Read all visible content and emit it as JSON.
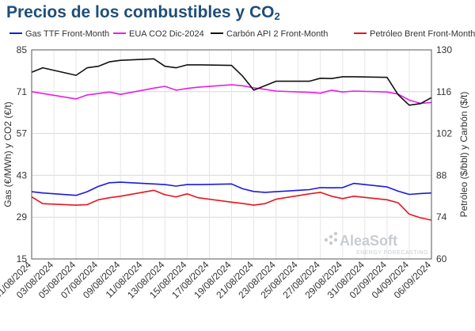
{
  "title_main": "Precios de los combustibles y CO",
  "title_sub": "2",
  "watermark": {
    "name": "AleaSoft",
    "tagline": "ENERGY FORECASTING"
  },
  "chart_data": {
    "type": "line",
    "x": [
      "01/08/2024",
      "02/08/2024",
      "05/08/2024",
      "06/08/2024",
      "07/08/2024",
      "08/08/2024",
      "09/08/2024",
      "12/08/2024",
      "13/08/2024",
      "14/08/2024",
      "15/08/2024",
      "16/08/2024",
      "19/08/2024",
      "20/08/2024",
      "21/08/2024",
      "22/08/2024",
      "23/08/2024",
      "26/08/2024",
      "27/08/2024",
      "28/08/2024",
      "29/08/2024",
      "30/08/2024",
      "02/09/2024",
      "03/09/2024",
      "04/09/2024",
      "05/09/2024",
      "06/09/2024"
    ],
    "xticks": [
      "01/08/2024",
      "03/08/2024",
      "05/08/2024",
      "07/08/2024",
      "09/08/2024",
      "11/08/2024",
      "13/08/2024",
      "15/08/2024",
      "17/08/2024",
      "19/08/2024",
      "21/08/2024",
      "23/08/2024",
      "25/08/2024",
      "27/08/2024",
      "29/08/2024",
      "31/08/2024",
      "02/09/2024",
      "04/09/2024",
      "06/09/2024"
    ],
    "xstart": "01/08/2024",
    "xend": "06/09/2024",
    "series": [
      {
        "name": "Gas TTF Front-Month",
        "color": "#1a1ae0",
        "axis": "left",
        "values": [
          37.5,
          37.1,
          36.3,
          37.5,
          39.3,
          40.5,
          40.7,
          40.1,
          39.9,
          39.4,
          39.9,
          39.9,
          40.1,
          38.5,
          37.6,
          37.3,
          37.5,
          38.2,
          38.9,
          38.8,
          38.9,
          40.3,
          39.1,
          37.7,
          36.6,
          36.9,
          37.1
        ]
      },
      {
        "name": "EUA CO2 Dic-2024",
        "color": "#e81ee8",
        "axis": "left",
        "values": [
          71.0,
          70.4,
          68.6,
          69.9,
          70.4,
          70.9,
          70.1,
          72.2,
          72.8,
          71.5,
          72.1,
          72.5,
          73.3,
          73.0,
          72.3,
          71.8,
          71.2,
          70.8,
          70.5,
          71.5,
          70.9,
          71.2,
          70.9,
          70.2,
          68.2,
          67.1,
          67.4
        ]
      },
      {
        "name": "Carbón API 2 Front-Month",
        "color": "#111111",
        "axis": "right",
        "values": [
          122.5,
          124.0,
          121.5,
          124.0,
          124.5,
          126.0,
          126.5,
          127.0,
          124.5,
          124.0,
          125.0,
          125.0,
          124.8,
          121.2,
          116.5,
          118.0,
          119.5,
          119.5,
          120.5,
          120.4,
          121.0,
          121.0,
          120.8,
          115.0,
          111.5,
          112.0,
          114.0
        ]
      },
      {
        "name": "Petróleo Brent Front-Month",
        "color": "#e8141e",
        "axis": "right",
        "values": [
          80.8,
          78.5,
          78.0,
          78.2,
          79.8,
          80.5,
          81.0,
          83.0,
          81.5,
          80.8,
          81.8,
          80.5,
          79.0,
          78.6,
          78.0,
          78.5,
          80.0,
          81.8,
          82.3,
          81.0,
          80.2,
          81.0,
          79.8,
          78.8,
          75.0,
          73.8,
          73.0
        ]
      }
    ],
    "left_axis": {
      "label": "Gas (€/MWh) y CO2 (€/t)",
      "min": 15,
      "max": 85,
      "ticks": [
        15,
        29,
        43,
        57,
        71,
        85
      ]
    },
    "right_axis": {
      "label": "Petróleo ($/bbl) y Carbón ($/t)",
      "min": 60,
      "max": 130,
      "ticks": [
        60,
        74,
        88,
        102,
        116,
        130
      ]
    },
    "grid": true,
    "legend_position": "top"
  }
}
